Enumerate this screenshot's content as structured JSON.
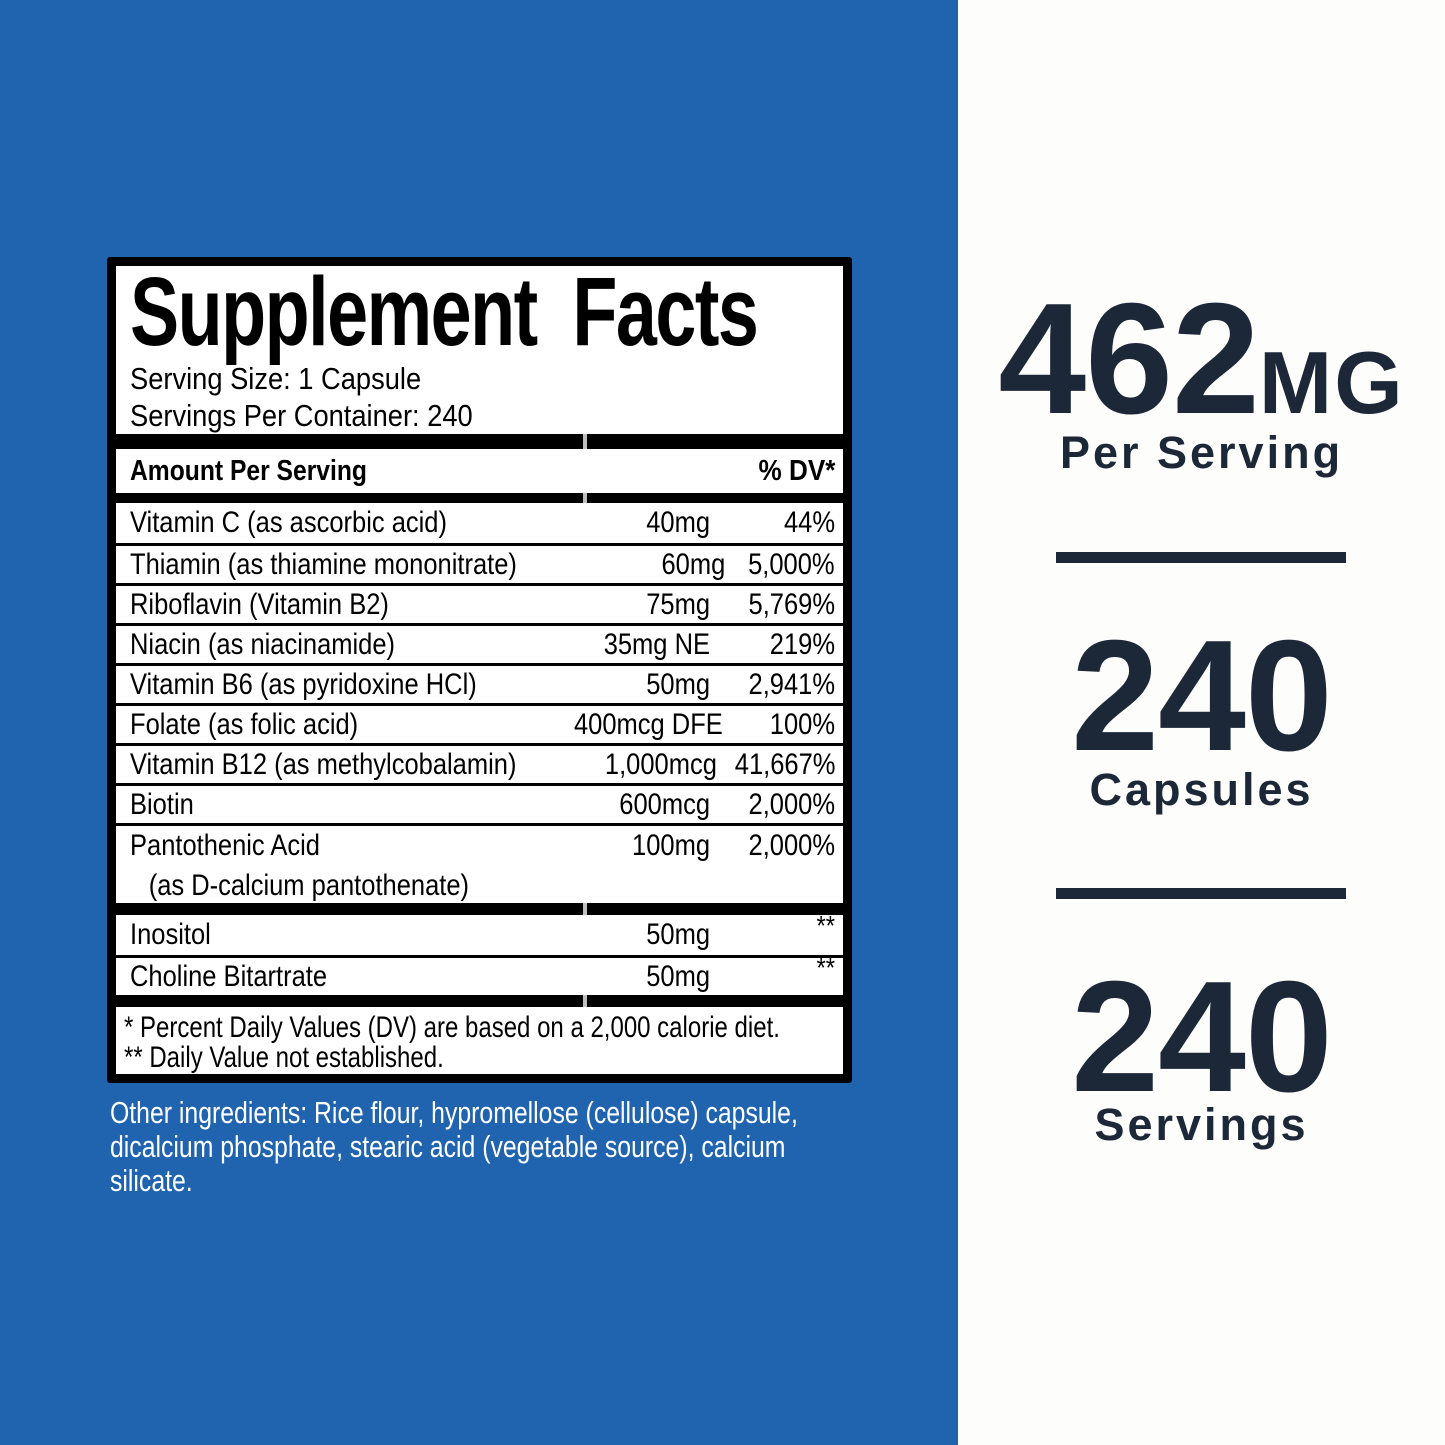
{
  "colors": {
    "blue_bg": "#2063AF",
    "navy_text": "#1C2838",
    "panel_bg": "#FFFFFF",
    "panel_border": "#000000"
  },
  "facts_panel": {
    "title": "Supplement Facts",
    "serving_size": "Serving Size: 1 Capsule",
    "servings_per_container": "Servings Per Container: 240",
    "header": {
      "amount": "Amount Per Serving",
      "dv": "% DV*"
    },
    "rows_main": [
      {
        "name": "Vitamin C (as ascorbic acid)",
        "amount": "40mg",
        "dv": "44%"
      },
      {
        "name": "Thiamin (as thiamine mononitrate)",
        "amount": "60mg",
        "dv": "5,000%"
      },
      {
        "name": "Riboflavin (Vitamin B2)",
        "amount": "75mg",
        "dv": "5,769%"
      },
      {
        "name": "Niacin (as niacinamide)",
        "amount": "35mg NE",
        "dv": "219%"
      },
      {
        "name": "Vitamin B6 (as pyridoxine HCl)",
        "amount": "50mg",
        "dv": "2,941%"
      },
      {
        "name": "Folate (as folic acid)",
        "amount": "400mcg DFE",
        "dv": "100%"
      },
      {
        "name": "Vitamin B12 (as methylcobalamin)",
        "amount": "1,000mcg",
        "dv": "41,667%"
      },
      {
        "name": "Biotin",
        "amount": "600mcg",
        "dv": "2,000%"
      },
      {
        "name": "Pantothenic Acid",
        "sub": "(as D-calcium pantothenate)",
        "amount": "100mg",
        "dv": "2,000%"
      }
    ],
    "rows_secondary": [
      {
        "name": "Inositol",
        "amount": "50mg",
        "dv": "**"
      },
      {
        "name": "Choline Bitartrate",
        "amount": "50mg",
        "dv": "**"
      }
    ],
    "footnotes": [
      "* Percent Daily Values (DV) are based on a 2,000 calorie diet.",
      "** Daily Value not established."
    ]
  },
  "other_ingredients_lines": [
    "Other ingredients: Rice flour, hypromellose (cellulose) capsule,",
    "dicalcium phosphate, stearic acid (vegetable source), calcium",
    "silicate."
  ],
  "right_panel": {
    "stats": [
      {
        "value": "462",
        "unit": "MG",
        "label": "Per Serving"
      },
      {
        "value": "240",
        "unit": "",
        "label": "Capsules"
      },
      {
        "value": "240",
        "unit": "",
        "label": "Servings"
      }
    ]
  }
}
